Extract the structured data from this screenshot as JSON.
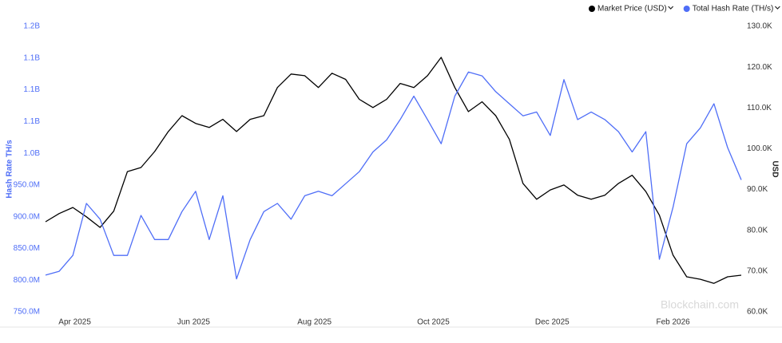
{
  "chart_data": {
    "type": "line",
    "x": [
      0,
      7,
      14,
      21,
      28,
      35,
      42,
      49,
      56,
      63,
      70,
      77,
      84,
      91,
      98,
      105,
      112,
      119,
      126,
      133,
      140,
      147,
      154,
      161,
      168,
      175,
      182,
      189,
      196,
      203,
      210,
      217,
      224,
      231,
      238,
      245,
      252,
      259,
      266,
      273,
      280,
      287,
      294,
      301,
      308,
      315,
      322,
      329,
      336,
      343,
      350,
      357
    ],
    "xlim": [
      0,
      357
    ],
    "xticks": [
      {
        "value": 15,
        "label": "Apr 2025"
      },
      {
        "value": 76,
        "label": "Jun 2025"
      },
      {
        "value": 138,
        "label": "Aug 2025"
      },
      {
        "value": 199,
        "label": "Oct 2025"
      },
      {
        "value": 260,
        "label": "Dec 2025"
      },
      {
        "value": 322,
        "label": "Feb 2026"
      }
    ],
    "series": [
      {
        "name": "Market Price (USD)",
        "color": "#000000",
        "axis": "y2",
        "values": [
          82100,
          84100,
          85600,
          83300,
          80700,
          84700,
          94400,
          95400,
          99300,
          104200,
          108100,
          106200,
          105200,
          107200,
          104200,
          107200,
          108100,
          115000,
          118300,
          117900,
          115000,
          118500,
          117000,
          112100,
          110100,
          112100,
          116000,
          115000,
          117900,
          122400,
          115000,
          109100,
          111500,
          108100,
          102300,
          91500,
          87600,
          89900,
          91100,
          88600,
          87600,
          88600,
          91500,
          93500,
          89500,
          83700,
          73900,
          68600,
          68000,
          67000,
          68600,
          69000
        ]
      },
      {
        "name": "Total Hash Rate (TH/s)",
        "color": "#4f6ef7",
        "values": [
          808000000,
          814000000,
          839000000,
          921000000,
          896000000,
          839000000,
          839000000,
          902000000,
          864000000,
          864000000,
          908000000,
          940000000,
          864000000,
          933000000,
          802000000,
          864000000,
          908000000,
          921000000,
          896000000,
          933000000,
          940000000,
          933000000,
          952000000,
          971000000,
          1002000000,
          1021000000,
          1053000000,
          1090000000,
          1053000000,
          1015000000,
          1090000000,
          1128000000,
          1122000000,
          1097000000,
          1078000000,
          1059000000,
          1065000000,
          1028000000,
          1116000000,
          1053000000,
          1065000000,
          1053000000,
          1034000000,
          1002000000,
          1034000000,
          833000000,
          915000000,
          1015000000,
          1040000000,
          1078000000,
          1009000000,
          958000000
        ]
      }
    ],
    "ylabel": "Hash Rate TH/s",
    "ylim": [
      750000000,
      1200000000
    ],
    "yticks": [
      {
        "value": 750000000,
        "label": "750.0M"
      },
      {
        "value": 800000000,
        "label": "800.0M"
      },
      {
        "value": 850000000,
        "label": "850.0M"
      },
      {
        "value": 900000000,
        "label": "900.0M"
      },
      {
        "value": 950000000,
        "label": "950.0M"
      },
      {
        "value": 1000000000,
        "label": "1.0B"
      },
      {
        "value": 1050000000,
        "label": "1.1B"
      },
      {
        "value": 1100000000,
        "label": "1.1B"
      },
      {
        "value": 1150000000,
        "label": "1.1B"
      },
      {
        "value": 1200000000,
        "label": "1.2B"
      }
    ],
    "y2label": "USD",
    "y2lim": [
      60000,
      130000
    ],
    "y2ticks": [
      {
        "value": 60000,
        "label": "60.0K"
      },
      {
        "value": 70000,
        "label": "70.0K"
      },
      {
        "value": 80000,
        "label": "80.0K"
      },
      {
        "value": 90000,
        "label": "90.0K"
      },
      {
        "value": 100000,
        "label": "100.0K"
      },
      {
        "value": 110000,
        "label": "110.0K"
      },
      {
        "value": 120000,
        "label": "120.0K"
      },
      {
        "value": 130000,
        "label": "130.0K"
      }
    ],
    "watermark": "Blockchain.com",
    "legend": "top-right"
  }
}
